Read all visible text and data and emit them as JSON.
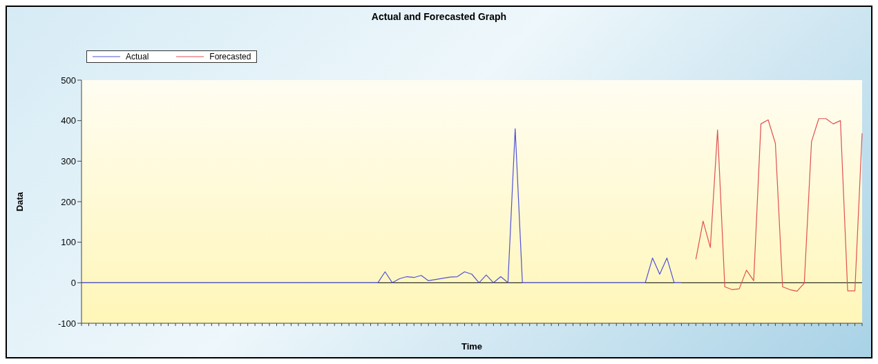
{
  "chart_data": {
    "type": "line",
    "title": "Actual and Forecasted Graph",
    "xlabel": "Time",
    "ylabel": "Data",
    "categories": [
      null,
      null,
      null,
      null,
      null,
      null,
      null,
      null,
      null,
      null,
      null,
      null,
      null,
      null,
      null,
      null,
      null,
      null,
      null,
      null,
      null,
      null,
      null,
      null,
      null,
      null,
      null,
      null,
      null,
      null,
      null,
      null,
      null,
      null,
      null,
      null,
      null,
      null,
      null,
      null,
      null,
      null,
      null,
      null,
      null,
      null,
      null,
      null,
      null,
      null,
      null,
      null,
      null,
      null,
      null,
      null,
      null,
      null,
      null,
      null,
      null,
      null,
      null,
      null,
      null,
      null,
      null,
      null,
      null,
      null,
      null,
      null,
      null,
      null,
      null,
      null,
      null,
      null,
      null,
      null,
      null,
      null,
      null,
      null,
      null,
      null,
      null,
      null,
      null,
      null,
      null,
      null,
      null,
      null,
      null,
      null,
      null,
      null,
      null,
      null,
      null,
      null,
      null,
      null,
      null,
      null,
      null,
      null,
      null
    ],
    "series": [
      {
        "name": "Actual",
        "color": "#5050d8",
        "values": [
          0,
          0,
          0,
          0,
          0,
          0,
          0,
          0,
          0,
          0,
          0,
          0,
          0,
          0,
          0,
          0,
          0,
          0,
          0,
          0,
          0,
          0,
          0,
          0,
          0,
          0,
          0,
          0,
          0,
          0,
          0,
          0,
          0,
          0,
          0,
          0,
          0,
          0,
          0,
          0,
          0,
          0,
          27,
          0,
          10,
          15,
          13,
          18,
          5,
          8,
          11,
          14,
          15,
          27,
          21,
          0,
          19,
          0,
          15,
          0,
          380,
          0,
          0,
          0,
          0,
          0,
          0,
          0,
          0,
          0,
          0,
          0,
          0,
          0,
          0,
          0,
          0,
          0,
          0,
          61,
          21,
          61,
          0,
          0,
          null,
          null,
          null,
          null,
          null,
          null,
          null,
          null,
          null,
          null,
          null,
          null,
          null,
          null,
          null,
          null,
          null,
          null,
          null,
          null,
          null,
          null,
          null,
          null,
          null
        ]
      },
      {
        "name": "Forecasted",
        "color": "#e05050",
        "values": [
          null,
          null,
          null,
          null,
          null,
          null,
          null,
          null,
          null,
          null,
          null,
          null,
          null,
          null,
          null,
          null,
          null,
          null,
          null,
          null,
          null,
          null,
          null,
          null,
          null,
          null,
          null,
          null,
          null,
          null,
          null,
          null,
          null,
          null,
          null,
          null,
          null,
          null,
          null,
          null,
          null,
          null,
          null,
          null,
          null,
          null,
          null,
          null,
          null,
          null,
          null,
          null,
          null,
          null,
          null,
          null,
          null,
          null,
          null,
          null,
          null,
          null,
          null,
          null,
          null,
          null,
          null,
          null,
          null,
          null,
          null,
          null,
          null,
          null,
          null,
          null,
          null,
          null,
          null,
          null,
          null,
          null,
          null,
          null,
          null,
          58,
          152,
          87,
          377,
          -10,
          -17,
          -15,
          31,
          5,
          392,
          402,
          344,
          -10,
          -17,
          -21,
          -1,
          348,
          405,
          405,
          392,
          400,
          -20,
          -20,
          369
        ]
      }
    ],
    "ylim": [
      -100,
      500
    ],
    "yticks": [
      -100,
      0,
      100,
      200,
      300,
      400,
      500
    ],
    "grid": false,
    "legend": "top left",
    "marker": "none",
    "line_style": "solid",
    "ref_lines": [
      {
        "axis": "y",
        "value": 0,
        "color": "#000000"
      }
    ]
  }
}
